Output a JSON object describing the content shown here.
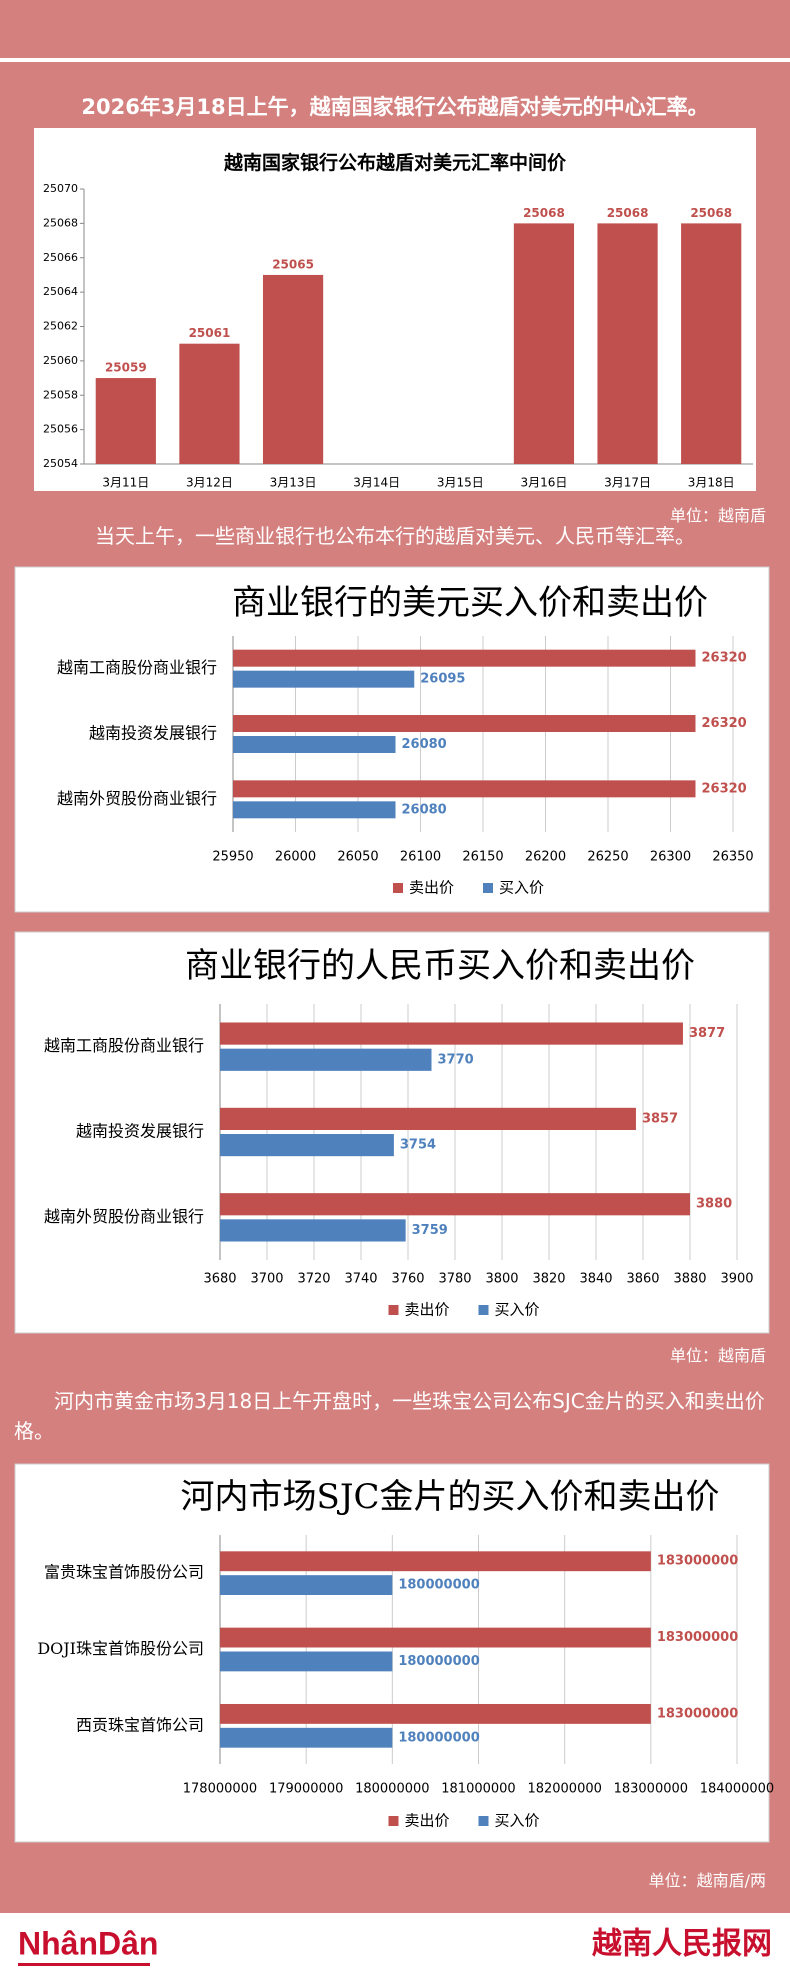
{
  "paragraphs": [
    "2026年3月18日上午，越南国家银行公布越盾对美元的中心汇率。",
    "当天上午，一些商业银行也公布本行的越盾对美元、人民币等汇率。",
    "河内市黄金市场3月18日上午开盘时，一些珠宝公司公布SJC金片的买入和卖出价格。"
  ],
  "units": [
    "单位：越南盾",
    "单位：越南盾",
    "单位：越南盾/两"
  ],
  "footer": {
    "left": "NhânDân",
    "right": "越南人民报网"
  },
  "chart_data": [
    {
      "type": "bar",
      "title": "越南国家银行公布越盾对美元汇率中间价",
      "categories": [
        "3月11日",
        "3月12日",
        "3月13日",
        "3月14日",
        "3月15日",
        "3月16日",
        "3月17日",
        "3月18日"
      ],
      "values": [
        25059,
        25061,
        25065,
        null,
        null,
        25068,
        25068,
        25068
      ],
      "color": "#c0504d",
      "ylim": [
        25054,
        25070
      ],
      "yticks": [
        25054,
        25056,
        25058,
        25060,
        25062,
        25064,
        25066,
        25068,
        25070
      ],
      "grid": false
    },
    {
      "type": "barh",
      "title": "商业银行的美元买入价和卖出价",
      "categories": [
        "越南工商股份商业银行",
        "越南投资发展银行",
        "越南外贸股份商业银行"
      ],
      "series": [
        {
          "name": "卖出价",
          "color": "#c0504d",
          "values": [
            26320,
            26320,
            26320
          ]
        },
        {
          "name": "买入价",
          "color": "#4f81bd",
          "values": [
            26095,
            26080,
            26080
          ]
        }
      ],
      "xlim": [
        25950,
        26350
      ],
      "xticks": [
        25950,
        26000,
        26050,
        26100,
        26150,
        26200,
        26250,
        26300,
        26350
      ],
      "grid": true,
      "legend": "bottom"
    },
    {
      "type": "barh",
      "title": "商业银行的人民币买入价和卖出价",
      "categories": [
        "越南工商股份商业银行",
        "越南投资发展银行",
        "越南外贸股份商业银行"
      ],
      "series": [
        {
          "name": "卖出价",
          "color": "#c0504d",
          "values": [
            3877,
            3857,
            3880
          ]
        },
        {
          "name": "买入价",
          "color": "#4f81bd",
          "values": [
            3770,
            3754,
            3759
          ]
        }
      ],
      "xlim": [
        3680,
        3900
      ],
      "xticks": [
        3680,
        3700,
        3720,
        3740,
        3760,
        3780,
        3800,
        3820,
        3840,
        3860,
        3880,
        3900
      ],
      "grid": true,
      "legend": "bottom"
    },
    {
      "type": "barh",
      "title": "河内市场SJC金片的买入价和卖出价",
      "categories": [
        "富贵珠宝首饰股份公司",
        "DOJI珠宝首饰股份公司",
        "西贡珠宝首饰公司"
      ],
      "series": [
        {
          "name": "卖出价",
          "color": "#c0504d",
          "values": [
            183000000,
            183000000,
            183000000
          ]
        },
        {
          "name": "买入价",
          "color": "#4f81bd",
          "values": [
            180000000,
            180000000,
            180000000
          ]
        }
      ],
      "xlim": [
        178000000,
        184000000
      ],
      "xticks": [
        178000000,
        179000000,
        180000000,
        181000000,
        182000000,
        183000000,
        184000000
      ],
      "grid": true,
      "legend": "bottom"
    }
  ]
}
